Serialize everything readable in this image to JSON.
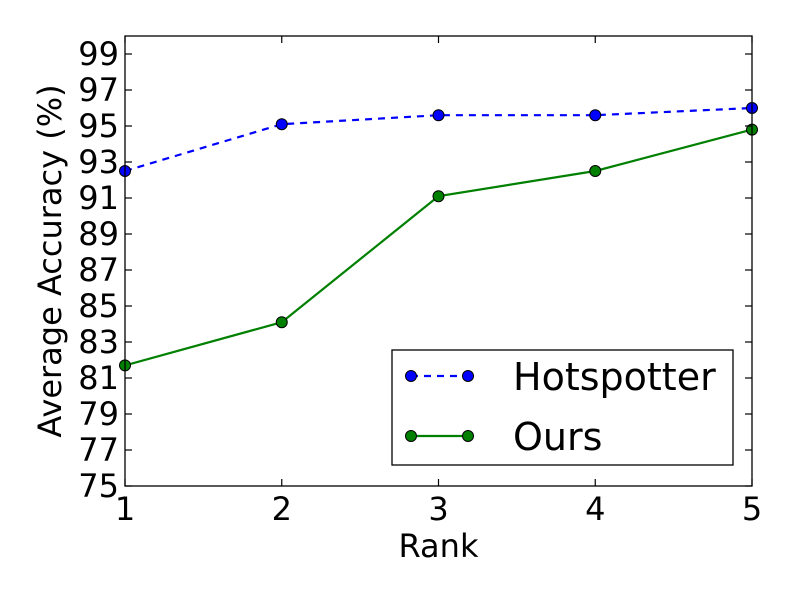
{
  "chart_data": {
    "type": "line",
    "title": "",
    "xlabel": "Rank",
    "ylabel": "Average Accuracy (%)",
    "x": [
      1,
      2,
      3,
      4,
      5
    ],
    "xlim": [
      1,
      5
    ],
    "ylim": [
      75,
      100
    ],
    "xticks": [
      "1",
      "2",
      "3",
      "4",
      "5"
    ],
    "yticks": [
      "75",
      "77",
      "79",
      "81",
      "83",
      "85",
      "87",
      "89",
      "91",
      "93",
      "95",
      "97",
      "99"
    ],
    "grid": false,
    "legend_position": "bottom-right",
    "series": [
      {
        "name": "Hotspotter",
        "values": [
          92.5,
          95.1,
          95.6,
          95.6,
          96.0
        ],
        "color": "#0000ff",
        "linestyle": "dashed",
        "marker": "circle"
      },
      {
        "name": "Ours",
        "values": [
          81.7,
          84.1,
          91.1,
          92.5,
          94.8
        ],
        "color": "#008000",
        "linestyle": "solid",
        "marker": "circle"
      }
    ]
  }
}
